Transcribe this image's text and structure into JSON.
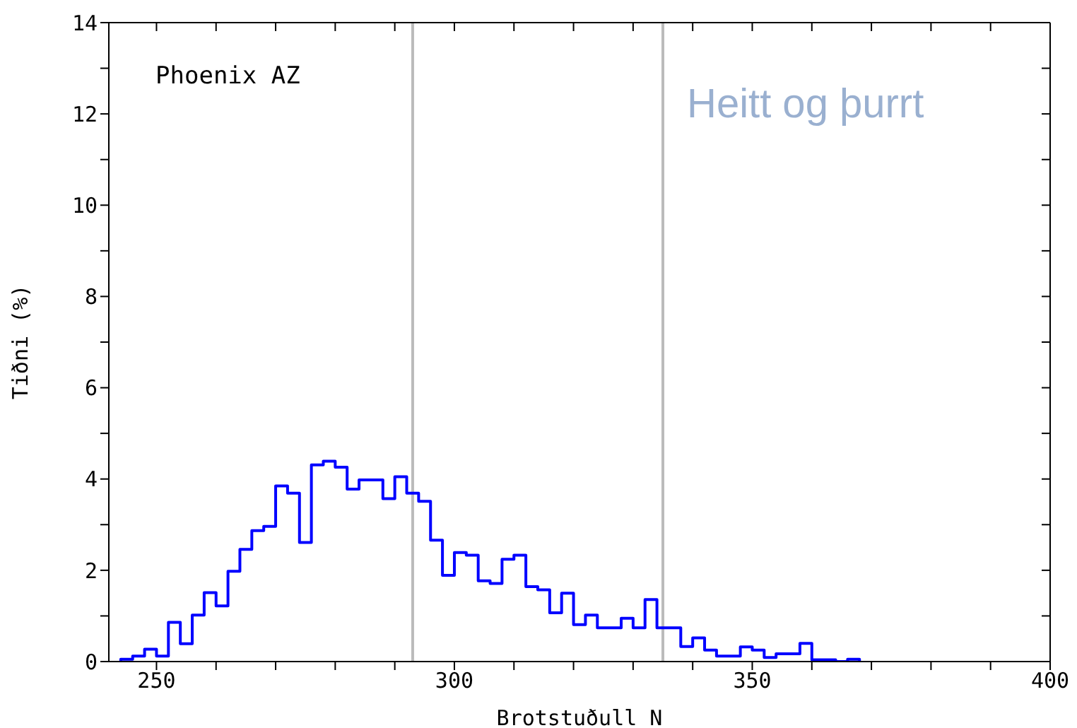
{
  "chart_data": {
    "type": "histogram",
    "xlabel": "Brotstuðull N",
    "ylabel": "Tiðni (%)",
    "annotations": [
      "Phoenix AZ",
      "Heitt og þurrt"
    ],
    "bins": [
      244,
      246,
      248,
      250,
      252,
      254,
      256,
      258,
      260,
      262,
      264,
      266,
      268,
      270,
      272,
      274,
      276,
      278,
      280,
      282,
      284,
      286,
      288,
      290,
      292,
      294,
      296,
      298,
      300,
      302,
      304,
      306,
      308,
      310,
      312,
      314,
      316,
      318,
      320,
      322,
      324,
      326,
      328,
      330,
      332,
      334,
      336,
      338,
      340,
      342,
      344,
      346,
      348,
      350,
      352,
      354,
      356,
      358,
      360,
      362,
      364,
      366,
      368
    ],
    "values": [
      0.05,
      0.12,
      0.27,
      0.12,
      0.86,
      0.39,
      1.02,
      1.51,
      1.22,
      1.98,
      2.46,
      2.87,
      2.96,
      3.85,
      3.69,
      2.61,
      4.31,
      4.39,
      4.26,
      3.78,
      3.98,
      3.98,
      3.57,
      4.05,
      3.69,
      3.51,
      2.66,
      1.89,
      2.39,
      2.33,
      1.77,
      1.71,
      2.24,
      2.33,
      1.64,
      1.57,
      1.07,
      1.5,
      0.81,
      1.02,
      0.74,
      0.74,
      0.95,
      0.74,
      1.36,
      0.74,
      0.74,
      0.33,
      0.52,
      0.25,
      0.12,
      0.12,
      0.32,
      0.25,
      0.09,
      0.17,
      0.17,
      0.4,
      0.04,
      0.04,
      0,
      0.05
    ],
    "color": "#0000ff",
    "xlim": [
      242,
      400
    ],
    "xticks": [
      250,
      {
        "value": 260,
        "label": null
      },
      {
        "value": 270,
        "label": null
      },
      {
        "value": 280,
        "label": null
      },
      {
        "value": 290,
        "label": null
      },
      300,
      {
        "value": 310,
        "label": null
      },
      {
        "value": 320,
        "label": null
      },
      {
        "value": 330,
        "label": null
      },
      {
        "value": 340,
        "label": null
      },
      350,
      {
        "value": 360,
        "label": null
      },
      {
        "value": 370,
        "label": null
      },
      {
        "value": 380,
        "label": null
      },
      {
        "value": 390,
        "label": null
      },
      400
    ],
    "ylim": [
      0,
      14
    ],
    "yticks": [
      0,
      {
        "value": 1,
        "label": null
      },
      2,
      {
        "value": 3,
        "label": null
      },
      4,
      {
        "value": 5,
        "label": null
      },
      6,
      {
        "value": 7,
        "label": null
      },
      8,
      {
        "value": 9,
        "label": null
      },
      10,
      {
        "value": 11,
        "label": null
      },
      12,
      {
        "value": 13,
        "label": null
      },
      14
    ],
    "ref_lines": [
      {
        "axis": "x",
        "value": 293,
        "color": "#bbbbbb"
      },
      {
        "axis": "x",
        "value": 335,
        "color": "#bbbbbb"
      }
    ]
  }
}
